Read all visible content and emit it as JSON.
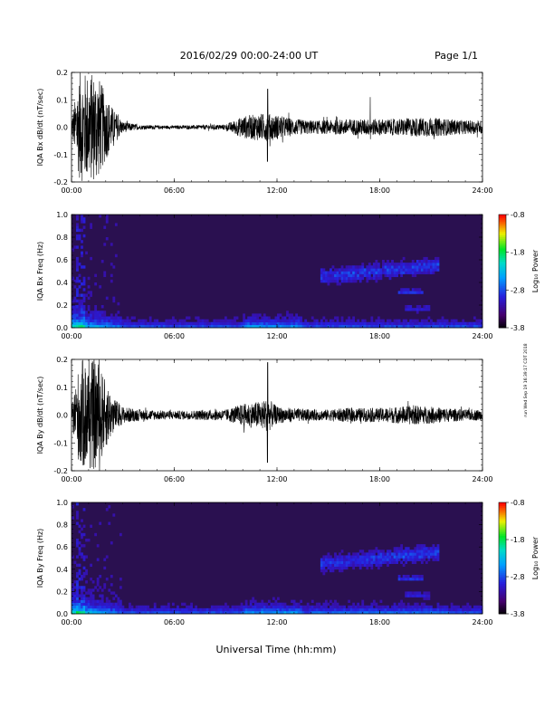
{
  "header": {
    "date_range": "2016/02/29  00:00-24:00 UT",
    "page": "Page 1/1"
  },
  "footer": {
    "xlabel": "Universal Time (hh:mm)"
  },
  "side_stamp": "run Wed Sep 19 16:39:17 CDT 2018",
  "colors": {
    "trace": "#000000",
    "spectrogram_background": "#2a1050"
  },
  "chart_data": [
    {
      "type": "line",
      "ylabel": "IQA Bx dB/dt (nT/sec)",
      "ylim": [
        -0.2,
        0.2
      ],
      "yticks": [
        "0.2",
        "0.1",
        "0.0",
        "-0.1",
        "-0.2"
      ],
      "xticks": [
        "00:00",
        "06:00",
        "12:00",
        "18:00",
        "24:00"
      ],
      "xlim_hours": [
        0,
        24
      ],
      "envelope": {
        "description_hours": [
          0,
          0.5,
          1,
          1.5,
          2,
          2.5,
          3,
          4,
          6,
          9,
          10,
          11,
          11.5,
          12,
          13,
          14,
          15,
          16,
          17,
          18,
          19,
          20,
          21,
          22,
          23,
          24
        ],
        "amplitude": [
          0.03,
          0.2,
          0.2,
          0.2,
          0.12,
          0.06,
          0.02,
          0.008,
          0.006,
          0.01,
          0.04,
          0.05,
          0.05,
          0.045,
          0.03,
          0.025,
          0.025,
          0.03,
          0.03,
          0.03,
          0.03,
          0.035,
          0.035,
          0.03,
          0.025,
          0.025
        ]
      }
    },
    {
      "type": "heatmap",
      "ylabel": "IQA Bx Freq (Hz)",
      "ylim": [
        0.0,
        1.0
      ],
      "yticks": [
        "1.0",
        "0.8",
        "0.6",
        "0.4",
        "0.2",
        "0.0"
      ],
      "xticks": [
        "00:00",
        "06:00",
        "12:00",
        "18:00",
        "24:00"
      ],
      "colorbar": {
        "label": "Log₁₀ Power",
        "ticks": [
          "-0.8",
          "-1.8",
          "-2.8",
          "-3.8"
        ],
        "range": [
          -3.8,
          -0.8
        ]
      }
    },
    {
      "type": "line",
      "ylabel": "IQA By dB/dt (nT/sec)",
      "ylim": [
        -0.2,
        0.2
      ],
      "yticks": [
        "0.2",
        "0.1",
        "0.0",
        "-0.1",
        "-0.2"
      ],
      "xticks": [
        "00:00",
        "06:00",
        "12:00",
        "18:00",
        "24:00"
      ],
      "xlim_hours": [
        0,
        24
      ],
      "envelope": {
        "description_hours": [
          0,
          0.5,
          1,
          1.5,
          2,
          2.5,
          3,
          4,
          6,
          9,
          10,
          11,
          11.5,
          12,
          13,
          14,
          15,
          16,
          17,
          18,
          19,
          20,
          21,
          22,
          23,
          24
        ],
        "amplitude": [
          0.03,
          0.2,
          0.2,
          0.2,
          0.12,
          0.06,
          0.03,
          0.02,
          0.015,
          0.02,
          0.04,
          0.05,
          0.06,
          0.03,
          0.025,
          0.02,
          0.02,
          0.025,
          0.025,
          0.025,
          0.03,
          0.035,
          0.03,
          0.025,
          0.02,
          0.02
        ]
      }
    },
    {
      "type": "heatmap",
      "ylabel": "IQA By Freq (Hz)",
      "ylim": [
        0.0,
        1.0
      ],
      "yticks": [
        "1.0",
        "0.8",
        "0.6",
        "0.4",
        "0.2",
        "0.0"
      ],
      "xticks": [
        "00:00",
        "06:00",
        "12:00",
        "18:00",
        "24:00"
      ],
      "colorbar": {
        "label": "Log₁₀ Power",
        "ticks": [
          "-0.8",
          "-1.8",
          "-2.8",
          "-3.8"
        ],
        "range": [
          -3.8,
          -0.8
        ]
      }
    }
  ]
}
